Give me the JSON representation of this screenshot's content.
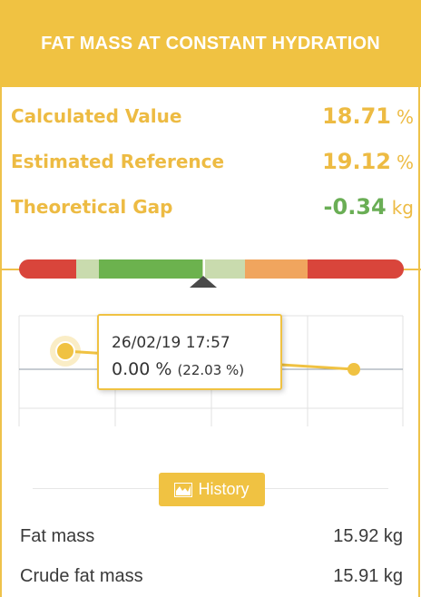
{
  "header": {
    "title": "FAT MASS AT CONSTANT HYDRATION"
  },
  "metrics": [
    {
      "label": "Calculated Value",
      "value": "18.71",
      "unit": "%",
      "color": "#edbb43"
    },
    {
      "label": "Estimated Reference",
      "value": "19.12",
      "unit": "%",
      "color": "#edbb43"
    },
    {
      "label": "Theoretical Gap",
      "value": "-0.34",
      "unit": "kg",
      "color": "#6aae55"
    }
  ],
  "gauge": {
    "segments": [
      {
        "color": "#d9453b",
        "flex": 63
      },
      {
        "color": "#c9dbae",
        "flex": 25
      },
      {
        "color": "#6cb24e",
        "flex": 114
      },
      {
        "color": "#c9dbae",
        "flex": 47
      },
      {
        "color": "#f0a55e",
        "flex": 69
      },
      {
        "color": "#d9453b",
        "flex": 106
      }
    ],
    "marker_fraction": 0.48
  },
  "chart": {
    "points": [
      {
        "date": "26/02/19 17:57",
        "value": 0.0
      },
      {
        "date": "",
        "value": 0.0
      }
    ]
  },
  "tooltip": {
    "date": "26/02/19 17:57",
    "value": "0.00 %",
    "secondary": "(22.03 %)"
  },
  "history": {
    "label": "History",
    "icon": "area-chart-icon"
  },
  "info_rows": [
    {
      "label": "Fat mass",
      "value": "15.92 kg"
    },
    {
      "label": "Crude fat mass",
      "value": "15.91 kg"
    }
  ],
  "colors": {
    "accent": "#f0c242",
    "positive": "#6aae55"
  }
}
